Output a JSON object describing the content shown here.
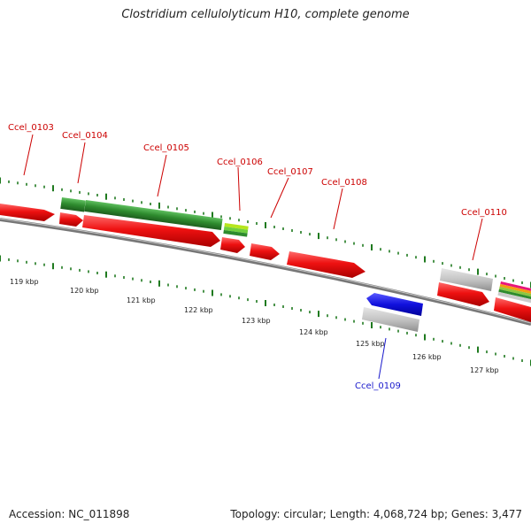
{
  "title": "Clostridium cellulolyticum H10, complete genome",
  "footer": {
    "accession": "Accession: NC_011898",
    "stats": "Topology: circular; Length: 4,068,724 bp; Genes: 3,477"
  },
  "scale": {
    "labels": [
      "119 kbp",
      "120 kbp",
      "121 kbp",
      "122 kbp",
      "123 kbp",
      "124 kbp",
      "125 kbp",
      "126 kbp",
      "127 kbp"
    ]
  },
  "gene_labels": [
    {
      "id": "ccel0103",
      "text": "Ccel_0103",
      "color": "#cc0000"
    },
    {
      "id": "ccel0104",
      "text": "Ccel_0104",
      "color": "#cc0000"
    },
    {
      "id": "ccel0105",
      "text": "Ccel_0105",
      "color": "#cc0000"
    },
    {
      "id": "ccel0106",
      "text": "Ccel_0106",
      "color": "#cc0000"
    },
    {
      "id": "ccel0107",
      "text": "Ccel_0107",
      "color": "#cc0000"
    },
    {
      "id": "ccel0108",
      "text": "Ccel_0108",
      "color": "#cc0000"
    },
    {
      "id": "ccel0110",
      "text": "Ccel_0110",
      "color": "#cc0000"
    },
    {
      "id": "ccel0109",
      "text": "Ccel_0109",
      "color": "#1a1acc"
    }
  ],
  "colors": {
    "gene_red": "#ee1111",
    "gene_green": "#2e8b2e",
    "gene_gray": "#bbbbbb",
    "gene_blue": "#1111dd",
    "tick_green": "#1f7a1f",
    "backbone": "#777777"
  }
}
